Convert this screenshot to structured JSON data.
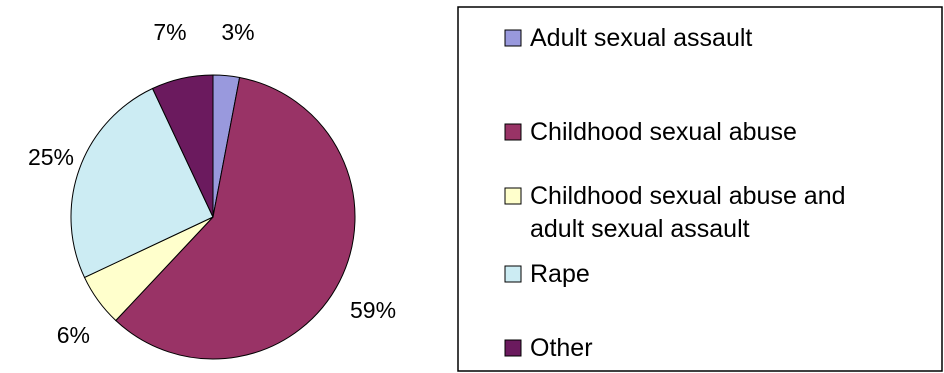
{
  "chart_data": {
    "type": "pie",
    "title": "",
    "start_angle_deg": 0,
    "direction": "clockwise",
    "slices": [
      {
        "label": "Adult sexual assault",
        "value": 3,
        "display": "3%",
        "color": "#9999dd"
      },
      {
        "label": "Childhood sexual abuse",
        "value": 59,
        "display": "59%",
        "color": "#993366"
      },
      {
        "label": "Childhood sexual abuse and adult sexual assault",
        "value": 6,
        "display": "6%",
        "color": "#ffffcc"
      },
      {
        "label": "Rape",
        "value": 25,
        "display": "25%",
        "color": "#ccecf3"
      },
      {
        "label": "Other",
        "value": 7,
        "display": "7%",
        "color": "#6b1a5e"
      }
    ],
    "legend": {
      "position": "right",
      "entries": [
        {
          "lines": [
            "Adult sexual assault"
          ]
        },
        {
          "lines": [
            "Childhood sexual abuse"
          ]
        },
        {
          "lines": [
            "Childhood sexual abuse and",
            "adult sexual assault"
          ]
        },
        {
          "lines": [
            "Rape"
          ]
        },
        {
          "lines": [
            "Other"
          ]
        }
      ]
    }
  }
}
